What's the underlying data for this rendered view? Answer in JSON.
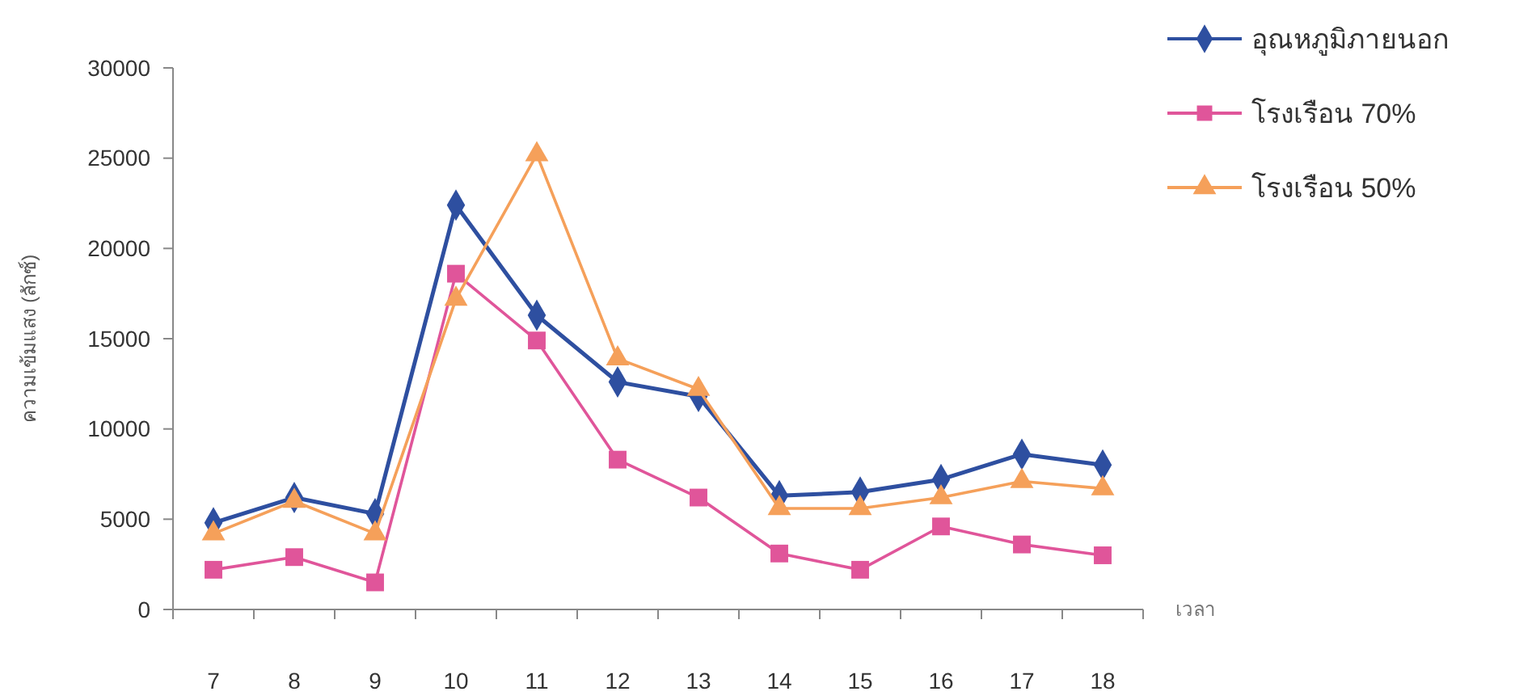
{
  "chart_data": {
    "type": "line",
    "xlabel": "เวลา",
    "ylabel": "ความเข้มแสง (ลักซ์)",
    "categories": [
      "7",
      "8",
      "9",
      "10",
      "11",
      "12",
      "13",
      "14",
      "15",
      "16",
      "17",
      "18"
    ],
    "series": [
      {
        "name": "อุณหภูมิภายนอก",
        "color": "#2e4fa0",
        "marker": "diamond",
        "values": [
          4800,
          6200,
          5300,
          22400,
          16300,
          12600,
          11800,
          6300,
          6500,
          7200,
          8600,
          8000
        ]
      },
      {
        "name": "โรงเรือน 70%",
        "color": "#e0559a",
        "marker": "square",
        "values": [
          2200,
          2900,
          1500,
          18600,
          14900,
          8300,
          6200,
          3100,
          2200,
          4600,
          3600,
          3000
        ]
      },
      {
        "name": "โรงเรือน 50%",
        "color": "#f5a05a",
        "marker": "triangle",
        "values": [
          4200,
          6000,
          4200,
          17200,
          25200,
          13900,
          12200,
          5600,
          5600,
          6200,
          7100,
          6700
        ]
      }
    ],
    "ylim": [
      0,
      30000
    ],
    "yticks": [
      0,
      5000,
      10000,
      15000,
      20000,
      25000,
      30000
    ],
    "grid": false,
    "legend": "top right",
    "line_style": "solid"
  }
}
